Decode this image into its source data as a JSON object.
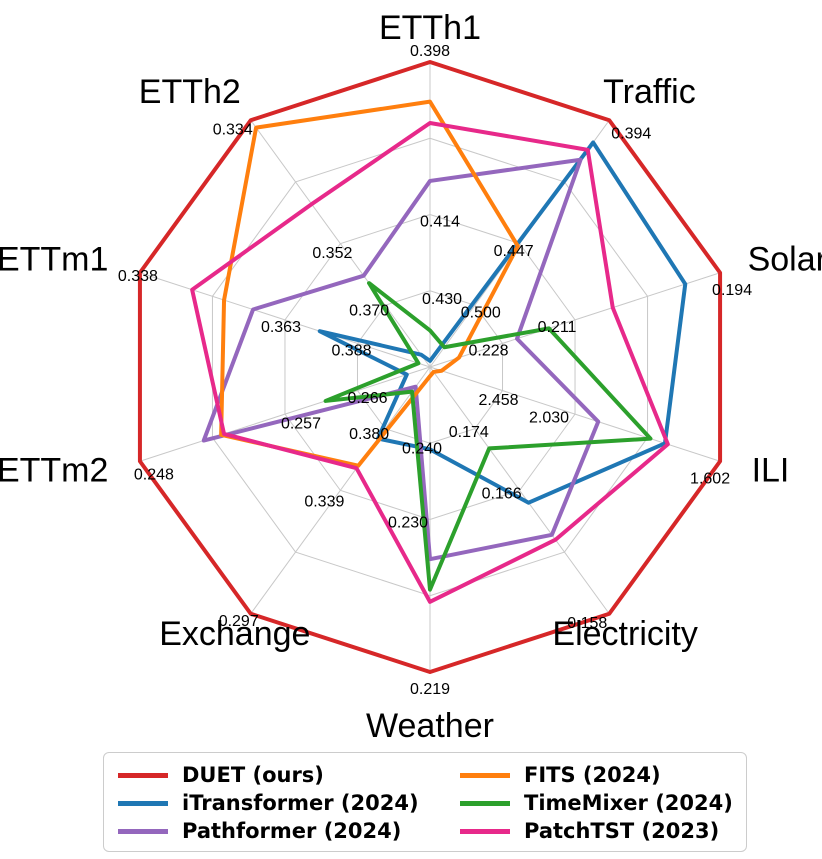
{
  "chart_data": {
    "type": "radar",
    "axes": [
      {
        "name": "ETTh1",
        "ticks": [
          "0.398",
          "0.414",
          "0.430"
        ]
      },
      {
        "name": "Traffic",
        "ticks": [
          "0.394",
          "0.447",
          "0.500"
        ]
      },
      {
        "name": "Solar",
        "ticks": [
          "0.194",
          "0.211",
          "0.228"
        ]
      },
      {
        "name": "ILI",
        "ticks": [
          "1.602",
          "2.030",
          "2.458"
        ]
      },
      {
        "name": "Electricity",
        "ticks": [
          "0.158",
          "0.166",
          "0.174"
        ]
      },
      {
        "name": "Weather",
        "ticks": [
          "0.219",
          "0.230",
          "0.240"
        ]
      },
      {
        "name": "Exchange",
        "ticks": [
          "0.297",
          "0.339",
          "0.380"
        ]
      },
      {
        "name": "ETTm2",
        "ticks": [
          "0.248",
          "0.257",
          "0.266"
        ]
      },
      {
        "name": "ETTm1",
        "ticks": [
          "0.338",
          "0.363",
          "0.388"
        ]
      },
      {
        "name": "ETTh2",
        "ticks": [
          "0.334",
          "0.352",
          "0.370"
        ]
      }
    ],
    "series": [
      {
        "name": "DUET (ours)",
        "color": "#d62728",
        "values": [
          1.0,
          1.0,
          1.0,
          1.0,
          1.0,
          1.0,
          1.0,
          1.0,
          1.0,
          1.0
        ]
      },
      {
        "name": "iTransformer (2024)",
        "color": "#1f77b4",
        "values": [
          0.02,
          0.91,
          0.88,
          0.81,
          0.55,
          0.27,
          0.29,
          0.08,
          0.38,
          0.05
        ]
      },
      {
        "name": "Pathformer (2024)",
        "color": "#9467bd",
        "values": [
          0.61,
          0.84,
          0.3,
          0.58,
          0.68,
          0.63,
          0.08,
          0.78,
          0.61,
          0.37
        ]
      },
      {
        "name": "FITS (2024)",
        "color": "#ff7f0e",
        "values": [
          0.87,
          0.49,
          0.1,
          0.04,
          0.02,
          0.03,
          0.4,
          0.72,
          0.71,
          0.97
        ]
      },
      {
        "name": "TimeMixer (2024)",
        "color": "#2ca02c",
        "values": [
          0.12,
          0.08,
          0.41,
          0.76,
          0.33,
          0.73,
          0.1,
          0.36,
          0.04,
          0.34
        ]
      },
      {
        "name": "PatchTST (2023)",
        "color": "#e7298a",
        "values": [
          0.8,
          0.88,
          0.63,
          0.82,
          0.7,
          0.77,
          0.41,
          0.71,
          0.82,
          0.66
        ]
      }
    ],
    "grid": true,
    "legend": "bottom"
  }
}
